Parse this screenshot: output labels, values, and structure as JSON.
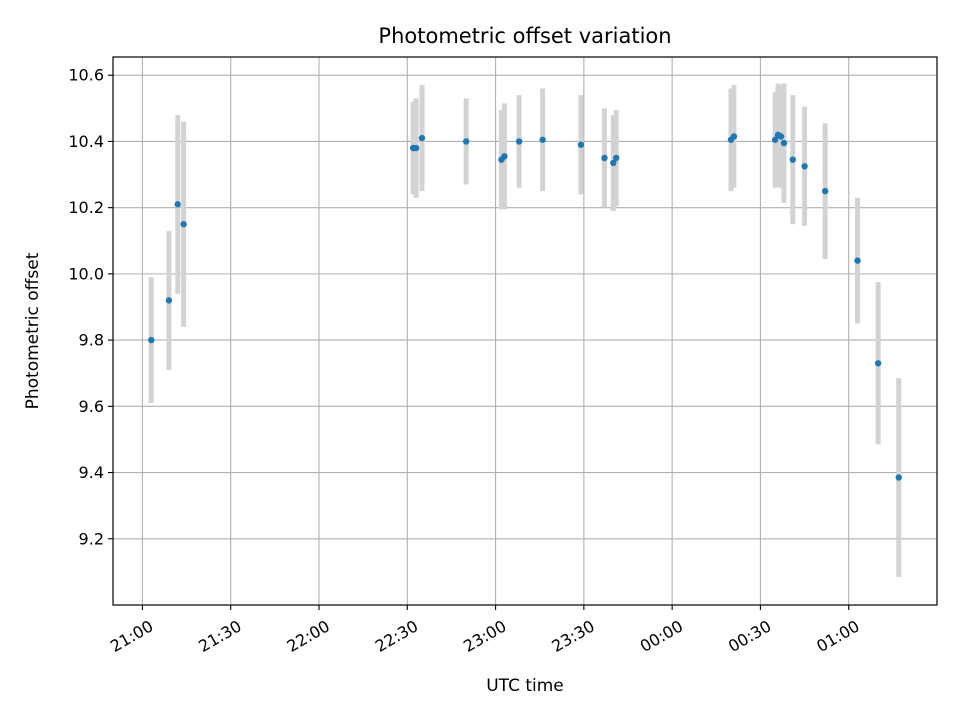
{
  "chart_data": {
    "type": "scatter",
    "title": "Photometric offset variation",
    "xlabel": "UTC time",
    "ylabel": "Photometric offset",
    "x_ticks": [
      "21:00",
      "21:30",
      "22:00",
      "22:30",
      "23:00",
      "23:30",
      "00:00",
      "00:30",
      "01:00"
    ],
    "y_ticks": [
      "9.2",
      "9.4",
      "9.6",
      "9.8",
      "10.0",
      "10.2",
      "10.4",
      "10.6"
    ],
    "xlim": [
      "20:50",
      "01:30"
    ],
    "ylim": [
      9.0,
      10.655
    ],
    "grid": true,
    "colors": {
      "point": "#1f77b4",
      "errorbar": "#d3d3d3",
      "grid": "#b0b0b0"
    },
    "points": [
      {
        "time": "21:03",
        "y": 9.8,
        "err": 0.19
      },
      {
        "time": "21:09",
        "y": 9.92,
        "err": 0.21
      },
      {
        "time": "21:12",
        "y": 10.21,
        "err": 0.27
      },
      {
        "time": "21:14",
        "y": 10.15,
        "err": 0.31
      },
      {
        "time": "22:32",
        "y": 10.38,
        "err": 0.14
      },
      {
        "time": "22:33",
        "y": 10.38,
        "err": 0.15
      },
      {
        "time": "22:35",
        "y": 10.41,
        "err": 0.16
      },
      {
        "time": "22:50",
        "y": 10.4,
        "err": 0.13
      },
      {
        "time": "23:02",
        "y": 10.345,
        "err": 0.15
      },
      {
        "time": "23:03",
        "y": 10.355,
        "err": 0.16
      },
      {
        "time": "23:08",
        "y": 10.4,
        "err": 0.14
      },
      {
        "time": "23:16",
        "y": 10.405,
        "err": 0.155
      },
      {
        "time": "23:29",
        "y": 10.39,
        "err": 0.15
      },
      {
        "time": "23:37",
        "y": 10.35,
        "err": 0.15
      },
      {
        "time": "23:40",
        "y": 10.335,
        "err": 0.145
      },
      {
        "time": "23:41",
        "y": 10.35,
        "err": 0.145
      },
      {
        "time": "00:20",
        "y": 10.405,
        "err": 0.155
      },
      {
        "time": "00:21",
        "y": 10.415,
        "err": 0.155
      },
      {
        "time": "00:35",
        "y": 10.405,
        "err": 0.145
      },
      {
        "time": "00:36",
        "y": 10.42,
        "err": 0.155
      },
      {
        "time": "00:37",
        "y": 10.415,
        "err": 0.155
      },
      {
        "time": "00:38",
        "y": 10.395,
        "err": 0.18
      },
      {
        "time": "00:41",
        "y": 10.345,
        "err": 0.195
      },
      {
        "time": "00:45",
        "y": 10.325,
        "err": 0.18
      },
      {
        "time": "00:52",
        "y": 10.25,
        "err": 0.205
      },
      {
        "time": "01:03",
        "y": 10.04,
        "err": 0.19
      },
      {
        "time": "01:10",
        "y": 9.73,
        "err": 0.245
      },
      {
        "time": "01:17",
        "y": 9.385,
        "err": 0.3
      }
    ]
  }
}
